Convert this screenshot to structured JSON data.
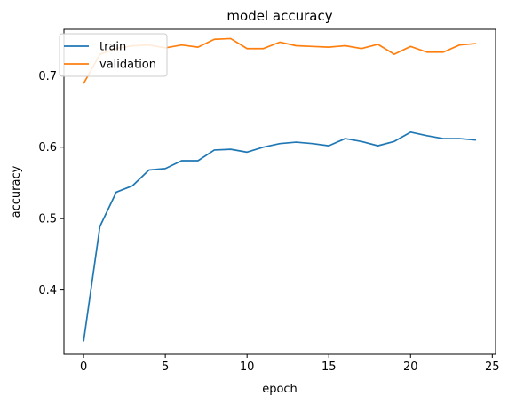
{
  "chart_data": {
    "type": "line",
    "title": "model accuracy",
    "xlabel": "epoch",
    "ylabel": "accuracy",
    "xlim": [
      -1.2,
      25.2
    ],
    "ylim": [
      0.31,
      0.765
    ],
    "xticks": [
      0,
      5,
      10,
      15,
      20,
      25
    ],
    "yticks": [
      0.4,
      0.5,
      0.6,
      0.7
    ],
    "ytick_labels": [
      "0.4",
      "0.5",
      "0.6",
      "0.7"
    ],
    "grid": false,
    "legend_position": "top-left",
    "series": [
      {
        "name": "train",
        "color": "#1f77b4",
        "x": [
          0,
          1,
          2,
          3,
          4,
          5,
          6,
          7,
          8,
          9,
          10,
          11,
          12,
          13,
          14,
          15,
          16,
          17,
          18,
          19,
          20,
          21,
          22,
          23,
          24
        ],
        "values": [
          0.328,
          0.489,
          0.537,
          0.546,
          0.568,
          0.57,
          0.581,
          0.581,
          0.596,
          0.597,
          0.593,
          0.6,
          0.605,
          0.607,
          0.605,
          0.602,
          0.612,
          0.608,
          0.602,
          0.608,
          0.621,
          0.616,
          0.612,
          0.612,
          0.61
        ]
      },
      {
        "name": "validation",
        "color": "#ff7f0e",
        "x": [
          0,
          1,
          2,
          3,
          4,
          5,
          6,
          7,
          8,
          9,
          10,
          11,
          12,
          13,
          14,
          15,
          16,
          17,
          18,
          19,
          20,
          21,
          22,
          23,
          24
        ],
        "values": [
          0.689,
          0.73,
          0.738,
          0.742,
          0.743,
          0.739,
          0.743,
          0.74,
          0.751,
          0.752,
          0.738,
          0.738,
          0.747,
          0.742,
          0.741,
          0.74,
          0.742,
          0.738,
          0.744,
          0.73,
          0.741,
          0.733,
          0.733,
          0.743,
          0.745
        ]
      }
    ]
  }
}
